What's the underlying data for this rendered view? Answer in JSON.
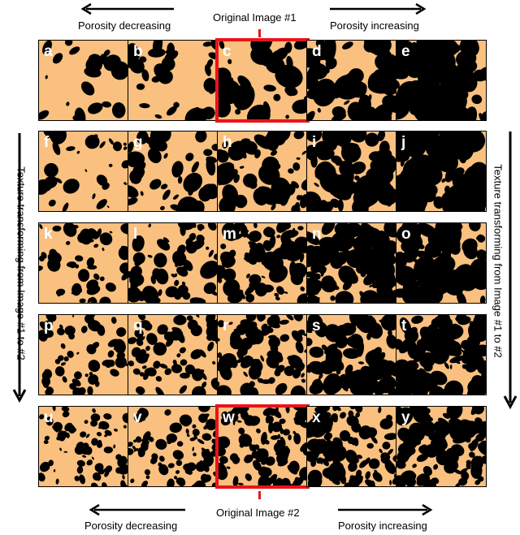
{
  "top": {
    "left_arrow_label": "Porosity decreasing",
    "center_label": "Original Image #1",
    "right_arrow_label": "Porosity increasing"
  },
  "bottom": {
    "left_arrow_label": "Porosity decreasing",
    "center_label": "Original Image #2",
    "right_arrow_label": "Porosity increasing"
  },
  "side": {
    "left_label": "Texture transforming from Image #1 to #2",
    "right_label": "Texture transforming from Image #1 to #2"
  },
  "grid": {
    "rows": [
      [
        "a",
        "b",
        "c",
        "d",
        "e"
      ],
      [
        "f",
        "g",
        "h",
        "i",
        "j"
      ],
      [
        "k",
        "l",
        "m",
        "n",
        "o"
      ],
      [
        "p",
        "q",
        "r",
        "s",
        "t"
      ],
      [
        "u",
        "v",
        "w",
        "x",
        "y"
      ]
    ],
    "highlighted": [
      "c",
      "w"
    ]
  },
  "colors": {
    "pore": "#000000",
    "solid": "#f9c07f",
    "highlight": "#e8141a"
  }
}
